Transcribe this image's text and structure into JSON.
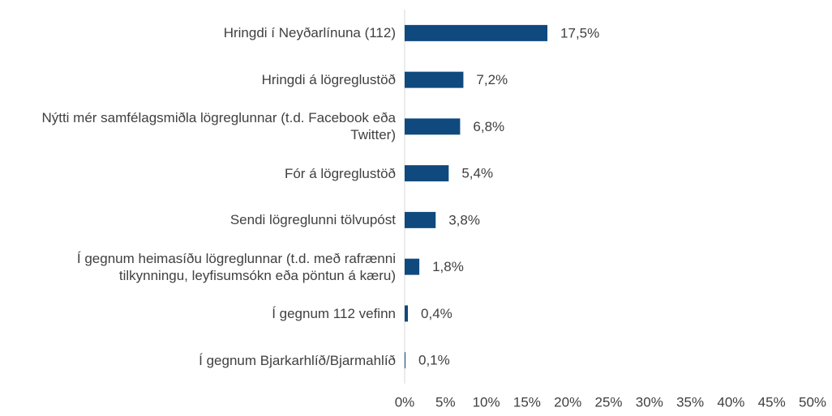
{
  "chart_data": {
    "type": "bar",
    "orientation": "horizontal",
    "categories": [
      "Hringdi í Neyðarlínuna (112)",
      "Hringdi á lögreglustöð",
      "Nýtti mér samfélagsmiðla lögreglunnar (t.d. Facebook eða Twitter)",
      "Fór á lögreglustöð",
      "Sendi lögreglunni tölvupóst",
      "Í gegnum heimasíðu lögreglunnar (t.d. með rafrænni tilkynningu, leyfisumsókn eða pöntun á kæru)",
      "Í gegnum 112 vefinn",
      "Í gegnum Bjarkarhlíð/Bjarmahlíð"
    ],
    "values": [
      17.5,
      7.2,
      6.8,
      5.4,
      3.8,
      1.8,
      0.4,
      0.1
    ],
    "value_labels": [
      "17,5%",
      "7,2%",
      "6,8%",
      "5,4%",
      "3,8%",
      "1,8%",
      "0,4%",
      "0,1%"
    ],
    "color": "#0f497e",
    "xlim": [
      0,
      50
    ],
    "xticks": [
      {
        "value": 0,
        "label": "0%"
      },
      {
        "value": 5,
        "label": "5%"
      },
      {
        "value": 10,
        "label": "10%"
      },
      {
        "value": 15,
        "label": "15%"
      },
      {
        "value": 20,
        "label": "20%"
      },
      {
        "value": 25,
        "label": "25%"
      },
      {
        "value": 30,
        "label": "30%"
      },
      {
        "value": 35,
        "label": "35%"
      },
      {
        "value": 40,
        "label": "40%"
      },
      {
        "value": 45,
        "label": "45%"
      },
      {
        "value": 50,
        "label": "50%"
      }
    ],
    "grid": false
  }
}
